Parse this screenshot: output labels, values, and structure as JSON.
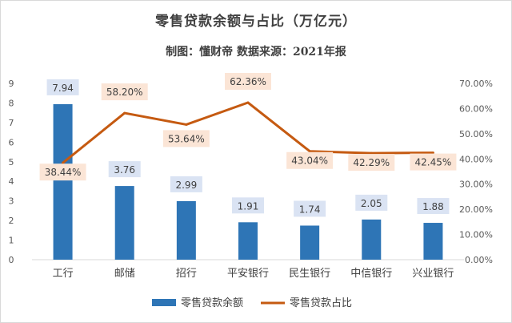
{
  "chart_data": {
    "type": "bar+line",
    "title": "零售贷款余额与占比（万亿元）",
    "subtitle": "制图：懂财帝   数据来源：2021年报",
    "categories": [
      "工行",
      "邮储",
      "招行",
      "平安银行",
      "民生银行",
      "中信银行",
      "兴业银行"
    ],
    "series": [
      {
        "name": "零售贷款余额",
        "type": "bar",
        "axis": "left",
        "values": [
          7.94,
          3.76,
          2.99,
          1.91,
          1.74,
          2.05,
          1.88
        ],
        "labels": [
          "7.94",
          "3.76",
          "2.99",
          "1.91",
          "1.74",
          "2.05",
          "1.88"
        ]
      },
      {
        "name": "零售贷款占比",
        "type": "line",
        "axis": "right",
        "values": [
          38.44,
          58.2,
          53.64,
          62.36,
          43.04,
          42.29,
          42.45
        ],
        "labels": [
          "38.44%",
          "58.20%",
          "53.64%",
          "62.36%",
          "43.04%",
          "42.29%",
          "42.45%"
        ]
      }
    ],
    "y_left": {
      "min": 0,
      "max": 9,
      "step": 1,
      "ticks": [
        "0",
        "1",
        "2",
        "3",
        "4",
        "5",
        "6",
        "7",
        "8",
        "9"
      ]
    },
    "y_right": {
      "min": 0,
      "max": 70,
      "step": 10,
      "ticks": [
        "0.00%",
        "10.00%",
        "20.00%",
        "30.00%",
        "40.00%",
        "50.00%",
        "60.00%",
        "70.00%"
      ]
    },
    "grid": false,
    "legend_position": "bottom",
    "colors": {
      "bar": "#2e75b6",
      "line": "#c55a11",
      "bar_label_bg": "#dae3f3",
      "line_label_bg": "#fbe5d6"
    }
  }
}
